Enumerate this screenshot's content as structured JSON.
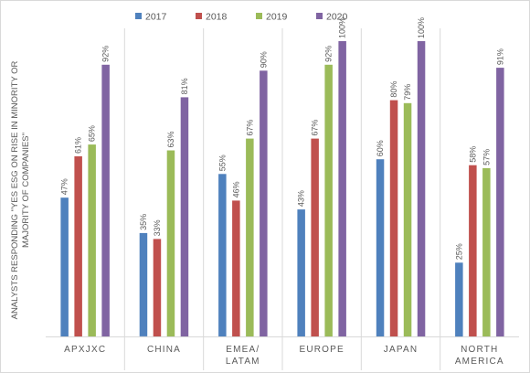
{
  "chart_data": {
    "type": "bar",
    "title": "",
    "xlabel": "",
    "ylabel": "ANALYSTS RESPONDING \"YES ESG ON RISE IN MINORITY OR MAJORITY OF COMPANIES\"",
    "ylabel_lines": [
      "ANALYSTS RESPONDING \"YES ESG ON RISE IN MINORITY OR",
      "MAJORITY OF COMPANIES\""
    ],
    "categories": [
      "APXJXC",
      "CHINA",
      "EMEA/ LATAM",
      "EUROPE",
      "JAPAN",
      "NORTH AMERICA"
    ],
    "category_lines": [
      [
        "APXJXC"
      ],
      [
        "CHINA"
      ],
      [
        "EMEA/",
        "LATAM"
      ],
      [
        "EUROPE"
      ],
      [
        "JAPAN"
      ],
      [
        "NORTH",
        "AMERICA"
      ]
    ],
    "series": [
      {
        "name": "2017",
        "color": "#4F81BD",
        "values": [
          47,
          35,
          55,
          43,
          60,
          25
        ],
        "labels": [
          "47%",
          "35%",
          "55%",
          "43%",
          "60%",
          "25%"
        ]
      },
      {
        "name": "2018",
        "color": "#C0504D",
        "values": [
          61,
          33,
          46,
          67,
          80,
          58
        ],
        "labels": [
          "61%",
          "33%",
          "46%",
          "67%",
          "80%",
          "58%"
        ]
      },
      {
        "name": "2019",
        "color": "#9BBB59",
        "values": [
          65,
          63,
          67,
          92,
          79,
          57
        ],
        "labels": [
          "65%",
          "63%",
          "67%",
          "92%",
          "79%",
          "57%"
        ]
      },
      {
        "name": "2020",
        "color": "#8064A2",
        "values": [
          92,
          81,
          90,
          100,
          100,
          91
        ],
        "labels": [
          "92%",
          "81%",
          "90%",
          "100%",
          "100%",
          "91%"
        ]
      }
    ],
    "ylim": [
      0,
      100
    ],
    "grid": false,
    "category_separators": true,
    "legend_position": "top-center",
    "data_label_format": "percent",
    "value_axis_visible": false
  }
}
